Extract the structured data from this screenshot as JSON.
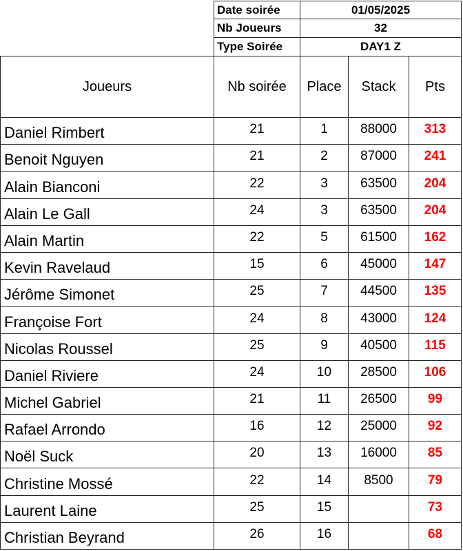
{
  "info": [
    {
      "label": "Date soirée",
      "value": "01/05/2025"
    },
    {
      "label": "Nb Joueurs",
      "value": "32"
    },
    {
      "label": "Type Soirée",
      "value": "DAY1 Z"
    }
  ],
  "columns": [
    "Joueurs",
    "Nb soirée",
    "Place",
    "Stack",
    "Pts"
  ],
  "colors": {
    "pts": "#ff0000",
    "border": "#222222"
  },
  "rows": [
    [
      "Daniel Rimbert",
      "21",
      "1",
      "88000",
      "313"
    ],
    [
      "Benoit Nguyen",
      "21",
      "2",
      "87000",
      "241"
    ],
    [
      "Alain Bianconi",
      "22",
      "3",
      "63500",
      "204"
    ],
    [
      "Alain Le Gall",
      "24",
      "3",
      "63500",
      "204"
    ],
    [
      "Alain Martin",
      "22",
      "5",
      "61500",
      "162"
    ],
    [
      "Kevin Ravelaud",
      "15",
      "6",
      "45000",
      "147"
    ],
    [
      "Jérôme Simonet",
      "25",
      "7",
      "44500",
      "135"
    ],
    [
      "Françoise Fort",
      "24",
      "8",
      "43000",
      "124"
    ],
    [
      "Nicolas Roussel",
      "25",
      "9",
      "40500",
      "115"
    ],
    [
      "Daniel Riviere",
      "24",
      "10",
      "28500",
      "106"
    ],
    [
      "Michel Gabriel",
      "21",
      "11",
      "26500",
      "99"
    ],
    [
      "Rafael Arrondo",
      "16",
      "12",
      "25000",
      "92"
    ],
    [
      "Noël Suck",
      "20",
      "13",
      "16000",
      "85"
    ],
    [
      "Christine Mossé",
      "22",
      "14",
      "8500",
      "79"
    ],
    [
      "Laurent Laine",
      "25",
      "15",
      "",
      "73"
    ],
    [
      "Christian Beyrand",
      "26",
      "16",
      "",
      "68"
    ]
  ]
}
